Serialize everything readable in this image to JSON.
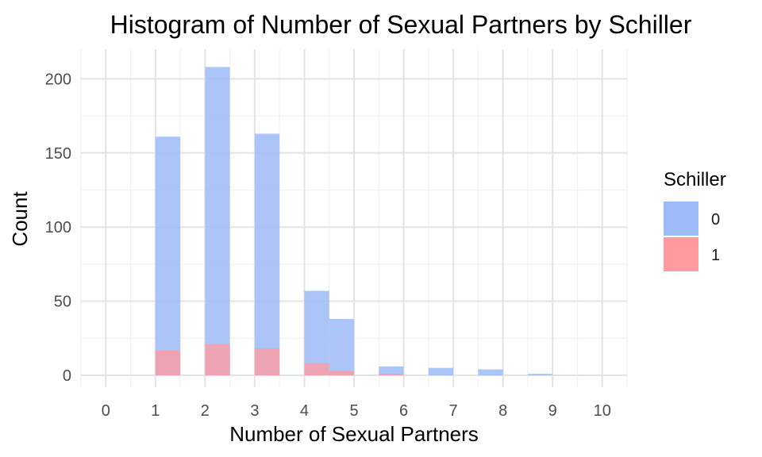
{
  "chart_data": {
    "type": "bar",
    "title": "Histogram of Number of Sexual Partners by Schiller",
    "xlabel": "Number of Sexual Partners",
    "ylabel": "Count",
    "x_ticks": [
      "0",
      "1",
      "2",
      "3",
      "4",
      "5",
      "6",
      "7",
      "8",
      "9",
      "10"
    ],
    "y_ticks": [
      0,
      50,
      100,
      150,
      200
    ],
    "xlim": [
      -0.5,
      10.5
    ],
    "ylim": [
      -8,
      220
    ],
    "grid": true,
    "legend": {
      "title": "Schiller",
      "position": "right"
    },
    "series": [
      {
        "name": "0",
        "color": "#9DBBF7",
        "bins": [
          {
            "x0": 1.0,
            "x1": 1.5,
            "value": 161
          },
          {
            "x0": 2.0,
            "x1": 2.5,
            "value": 208
          },
          {
            "x0": 3.0,
            "x1": 3.5,
            "value": 163
          },
          {
            "x0": 4.0,
            "x1": 4.5,
            "value": 57
          },
          {
            "x0": 4.5,
            "x1": 5.0,
            "value": 38
          },
          {
            "x0": 5.5,
            "x1": 6.0,
            "value": 6
          },
          {
            "x0": 6.5,
            "x1": 7.0,
            "value": 5
          },
          {
            "x0": 7.5,
            "x1": 8.0,
            "value": 4
          },
          {
            "x0": 8.5,
            "x1": 9.0,
            "value": 1
          }
        ]
      },
      {
        "name": "1",
        "color": "#FF9AA0",
        "bins": [
          {
            "x0": 1.0,
            "x1": 1.5,
            "value": 17
          },
          {
            "x0": 2.0,
            "x1": 2.5,
            "value": 21
          },
          {
            "x0": 3.0,
            "x1": 3.5,
            "value": 18
          },
          {
            "x0": 4.0,
            "x1": 4.5,
            "value": 8
          },
          {
            "x0": 4.5,
            "x1": 5.0,
            "value": 3
          },
          {
            "x0": 5.5,
            "x1": 6.0,
            "value": 1
          }
        ]
      }
    ]
  }
}
